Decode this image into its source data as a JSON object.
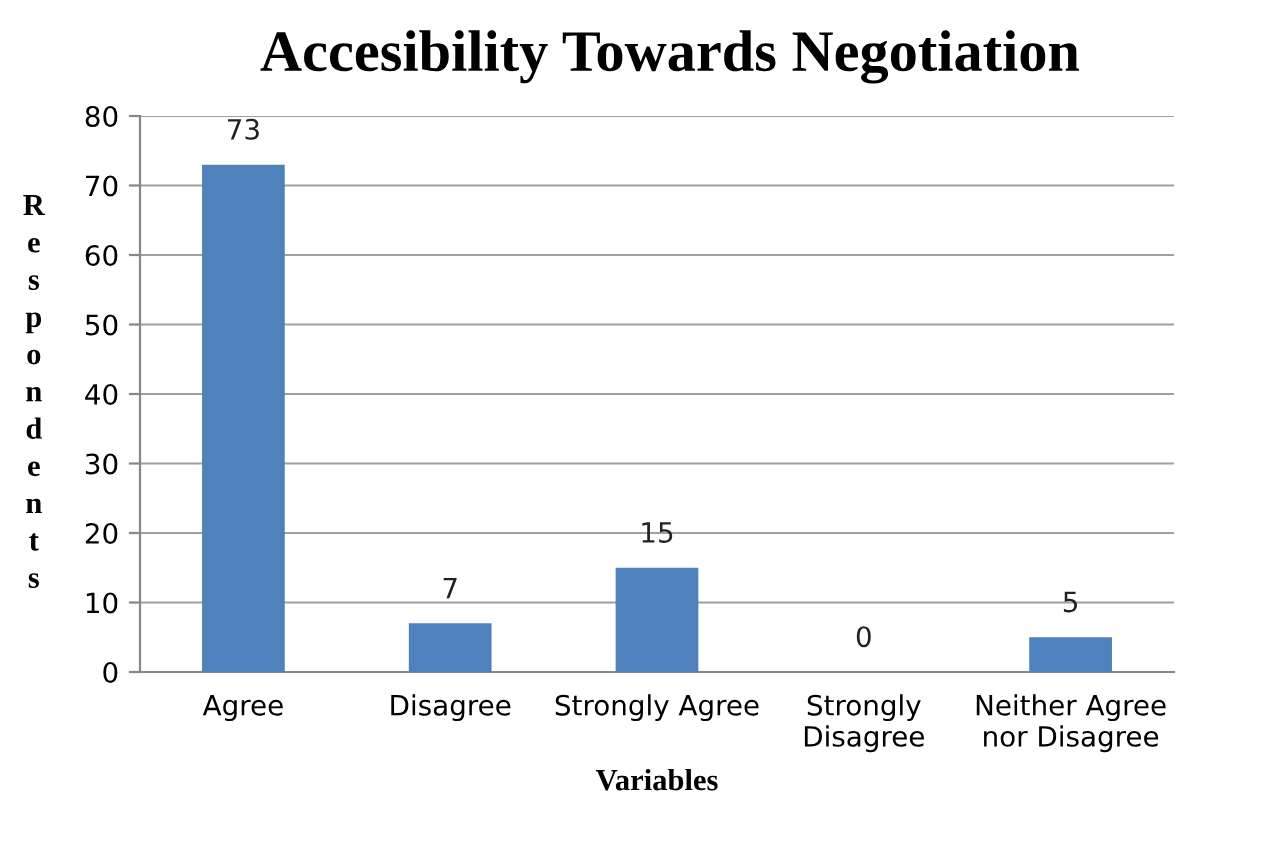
{
  "chart_data": {
    "type": "bar",
    "title": "Accesibility Towards Negotiation",
    "xlabel": "Variables",
    "ylabel": "Respondents",
    "categories": [
      "Agree",
      "Disagree",
      "Strongly Agree",
      "Strongly\nDisagree",
      "Neither Agree\nnor Disagree"
    ],
    "values": [
      73,
      7,
      15,
      0,
      5
    ],
    "color": "#4f81bd",
    "ylim": [
      0,
      80
    ],
    "yticks": [
      0,
      10,
      20,
      30,
      40,
      50,
      60,
      70,
      80
    ],
    "grid": "y",
    "data_labels": true
  }
}
